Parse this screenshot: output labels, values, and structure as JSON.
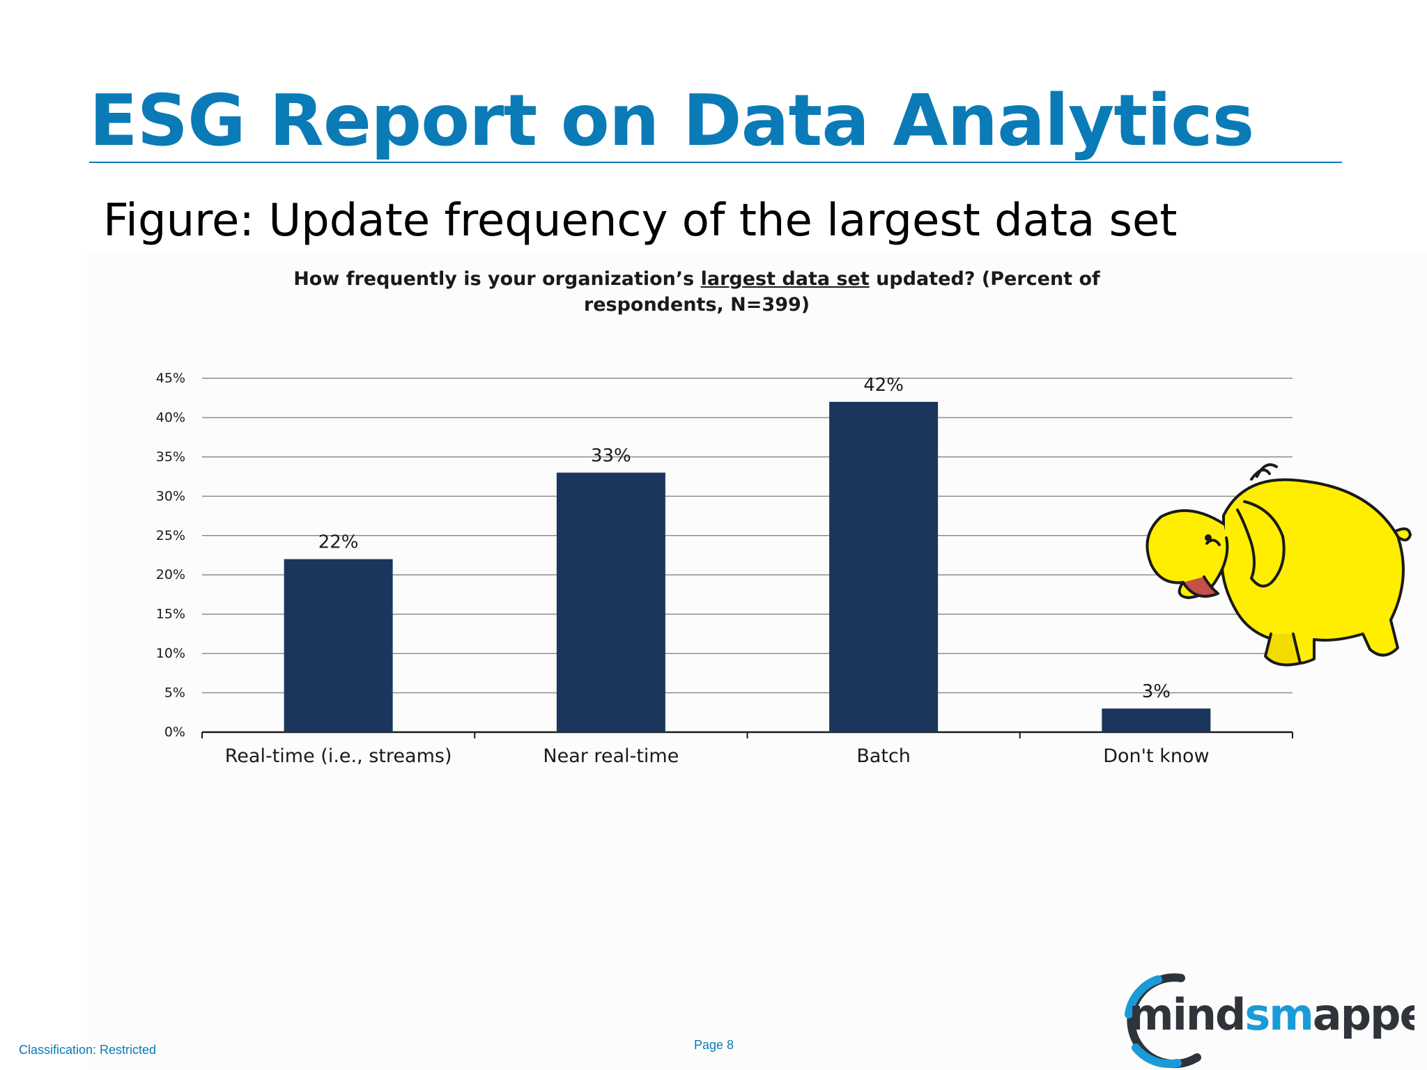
{
  "slide": {
    "title": "ESG Report on Data Analytics",
    "caption": "Figure: Update frequency of the largest data set"
  },
  "footer": {
    "classification": "Classification: Restricted",
    "page": "Page 8"
  },
  "logo": {
    "text_left": "mind",
    "text_accent": "sm",
    "text_right": "apped",
    "full_text": "mindsmapped"
  },
  "mascot": {
    "icon": "yellow-elephant-icon"
  },
  "colors": {
    "accent": "#0a7bb6",
    "bar": "#1b365d",
    "mascot": "#ffee00"
  },
  "chart_data": {
    "type": "bar",
    "title_parts": {
      "before": "How frequently is your organization’s ",
      "underlined": "largest data set",
      "after": " updated? (Percent of respondents, N=399)"
    },
    "categories": [
      "Real-time (i.e., streams)",
      "Near real-time",
      "Batch",
      "Don't know"
    ],
    "values": [
      22,
      33,
      42,
      3
    ],
    "data_labels": [
      "22%",
      "33%",
      "42%",
      "3%"
    ],
    "ylim": [
      0,
      45
    ],
    "yticks": [
      0,
      5,
      10,
      15,
      20,
      25,
      30,
      35,
      40,
      45
    ],
    "ytick_labels": [
      "0%",
      "5%",
      "10%",
      "15%",
      "20%",
      "25%",
      "30%",
      "35%",
      "40%",
      "45%"
    ],
    "grid": true,
    "legend": "none"
  }
}
